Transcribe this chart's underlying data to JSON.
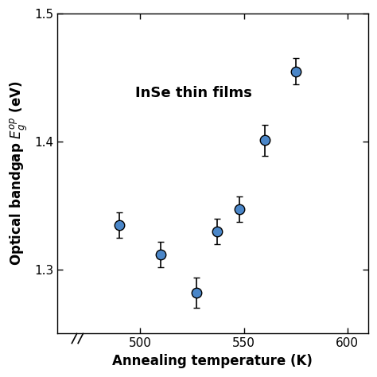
{
  "x": [
    490,
    510,
    527,
    537,
    548,
    560,
    575
  ],
  "y": [
    1.335,
    1.312,
    1.282,
    1.33,
    1.347,
    1.401,
    1.455
  ],
  "yerr": [
    0.01,
    0.01,
    0.012,
    0.01,
    0.01,
    0.012,
    0.01
  ],
  "marker_color": "#4a86c8",
  "marker_edge_color": "black",
  "marker_size": 9,
  "xlabel": "Annealing temperature (K)",
  "ylabel": "Optical bandgap $E_g^{op}$ (eV)",
  "annotation": "InSe thin films",
  "xlim": [
    460,
    610
  ],
  "ylim": [
    1.25,
    1.5
  ],
  "xticks": [
    500,
    550,
    600
  ],
  "yticks": [
    1.3,
    1.4,
    1.5
  ],
  "xlabel_fontsize": 12,
  "ylabel_fontsize": 12,
  "annotation_fontsize": 13,
  "tick_fontsize": 11,
  "background_color": "#ffffff"
}
